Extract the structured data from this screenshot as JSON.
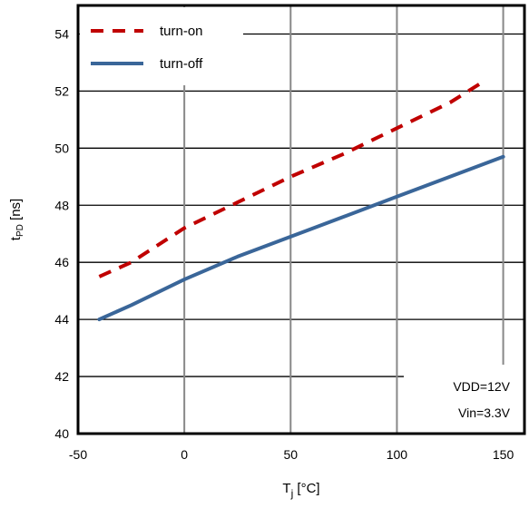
{
  "chart_data": {
    "type": "line",
    "xlabel": "T",
    "xlabel_sub": "j",
    "xlabel_unit": " [°C]",
    "ylabel": "t",
    "ylabel_sub": "PD",
    "ylabel_unit": " [ns]",
    "xlim": [
      -50,
      160
    ],
    "ylim": [
      40,
      55
    ],
    "xticks": [
      -50,
      0,
      50,
      100,
      150
    ],
    "yticks": [
      40,
      42,
      44,
      46,
      48,
      50,
      52,
      54
    ],
    "grid": {
      "vertical": true,
      "horizontal": true
    },
    "legend_position": "top-left",
    "series": [
      {
        "name": "turn-on",
        "color": "#c00000",
        "style": "dashed",
        "x": [
          -40,
          -25,
          0,
          25,
          50,
          75,
          100,
          125,
          140
        ],
        "y": [
          45.5,
          46.0,
          47.2,
          48.1,
          49.0,
          49.8,
          50.7,
          51.6,
          52.3
        ]
      },
      {
        "name": "turn-off",
        "color": "#3a6699",
        "style": "solid",
        "x": [
          -40,
          -25,
          0,
          25,
          50,
          75,
          100,
          125,
          150
        ],
        "y": [
          44.0,
          44.5,
          45.4,
          46.2,
          46.9,
          47.6,
          48.3,
          49.0,
          49.7
        ]
      }
    ],
    "annotation": [
      "VDD=12V",
      "Vin=3.3V"
    ]
  }
}
